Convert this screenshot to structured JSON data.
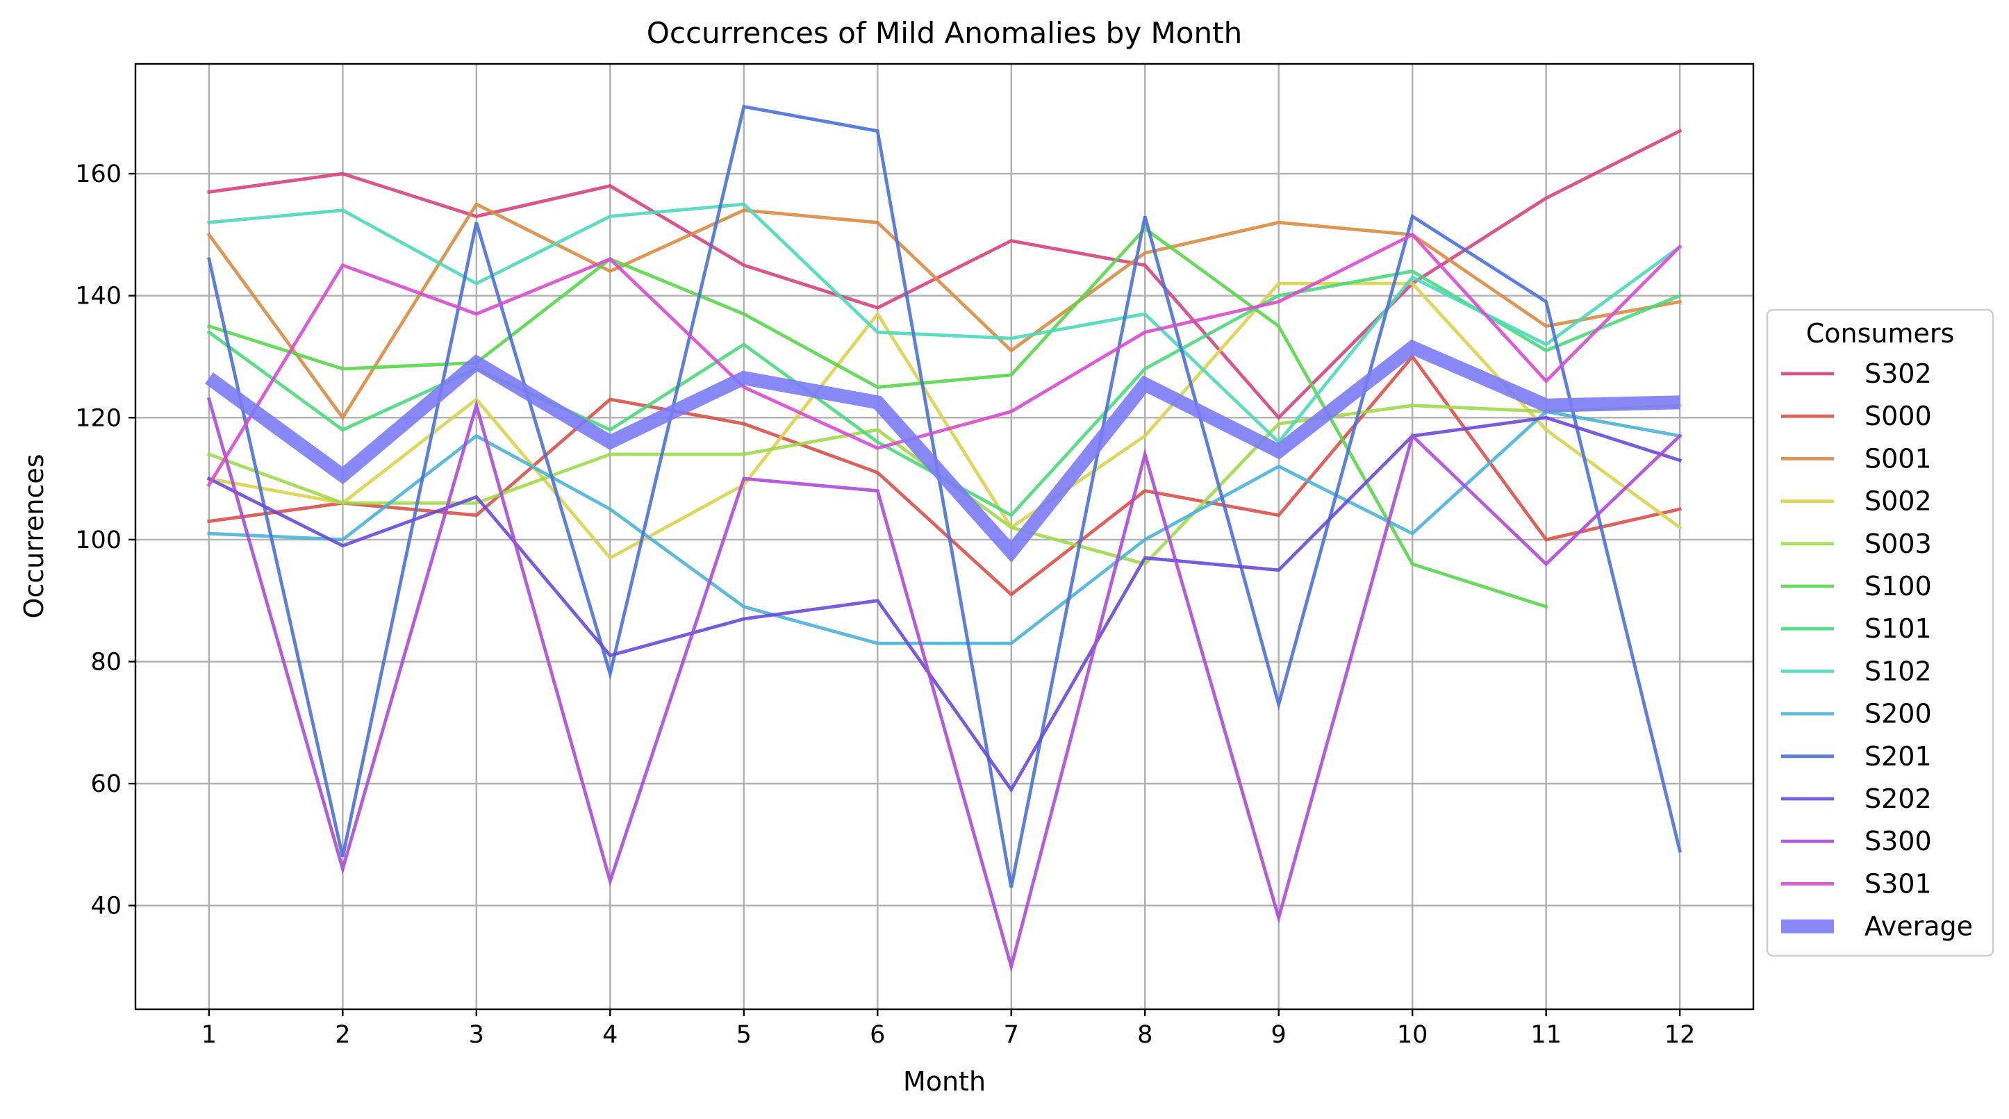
{
  "chart_data": {
    "type": "line",
    "title": "Occurrences of Mild Anomalies by Month",
    "xlabel": "Month",
    "ylabel": "Occurrences",
    "x": [
      1,
      2,
      3,
      4,
      5,
      6,
      7,
      8,
      9,
      10,
      11,
      12
    ],
    "xlim": [
      0.45,
      12.55
    ],
    "ylim": [
      23,
      178
    ],
    "yticks": [
      40,
      60,
      80,
      100,
      120,
      140,
      160
    ],
    "grid": true,
    "legend": {
      "title": "Consumers",
      "placement": "center-right-outside"
    },
    "series": [
      {
        "name": "S302",
        "color": "#d6427e",
        "values": [
          157,
          160,
          153,
          158,
          145,
          138,
          149,
          145,
          120,
          142,
          156,
          167
        ]
      },
      {
        "name": "S000",
        "color": "#d9514a",
        "values": [
          103,
          106,
          104,
          123,
          119,
          111,
          91,
          108,
          104,
          130,
          100,
          105
        ]
      },
      {
        "name": "S001",
        "color": "#d98c43",
        "values": [
          150,
          120,
          155,
          144,
          154,
          152,
          131,
          147,
          152,
          150,
          135,
          139
        ]
      },
      {
        "name": "S002",
        "color": "#d9d44a",
        "values": [
          110,
          106,
          123,
          97,
          109,
          137,
          102,
          117,
          142,
          142,
          118,
          102
        ]
      },
      {
        "name": "S003",
        "color": "#a0d94a",
        "values": [
          114,
          106,
          106,
          114,
          114,
          118,
          102,
          96,
          119,
          122,
          121,
          122
        ]
      },
      {
        "name": "S100",
        "color": "#58d64a",
        "values": [
          135,
          128,
          129,
          146,
          137,
          125,
          127,
          151,
          135,
          96,
          89,
          null
        ]
      },
      {
        "name": "S101",
        "color": "#4ad97a",
        "values": [
          134,
          118,
          128,
          118,
          132,
          116,
          104,
          128,
          140,
          144,
          131,
          140
        ]
      },
      {
        "name": "S102",
        "color": "#4ad9bc",
        "values": [
          152,
          154,
          142,
          153,
          155,
          134,
          133,
          137,
          116,
          143,
          132,
          148
        ]
      },
      {
        "name": "S200",
        "color": "#4ab2d9",
        "values": [
          101,
          100,
          117,
          105,
          89,
          83,
          83,
          100,
          112,
          101,
          121,
          117
        ]
      },
      {
        "name": "S201",
        "color": "#4a71d9",
        "values": [
          146,
          48,
          152,
          78,
          171,
          167,
          43,
          153,
          73,
          153,
          139,
          49
        ]
      },
      {
        "name": "S202",
        "color": "#6a4ad9",
        "values": [
          110,
          99,
          107,
          81,
          87,
          90,
          59,
          97,
          95,
          117,
          120,
          113
        ]
      },
      {
        "name": "S300",
        "color": "#ad4ad9",
        "values": [
          123,
          46,
          122,
          44,
          110,
          108,
          30,
          114,
          38,
          117,
          96,
          117
        ]
      },
      {
        "name": "S301",
        "color": "#d94ad0",
        "values": [
          109,
          145,
          137,
          146,
          125,
          115,
          121,
          134,
          139,
          150,
          126,
          148
        ]
      },
      {
        "name": "Average",
        "color": "#7b7bf5",
        "average": true,
        "values": [
          126.5,
          110.5,
          129,
          116,
          126.5,
          122.5,
          98,
          125.5,
          114.5,
          131.5,
          122,
          122.5
        ]
      }
    ]
  }
}
